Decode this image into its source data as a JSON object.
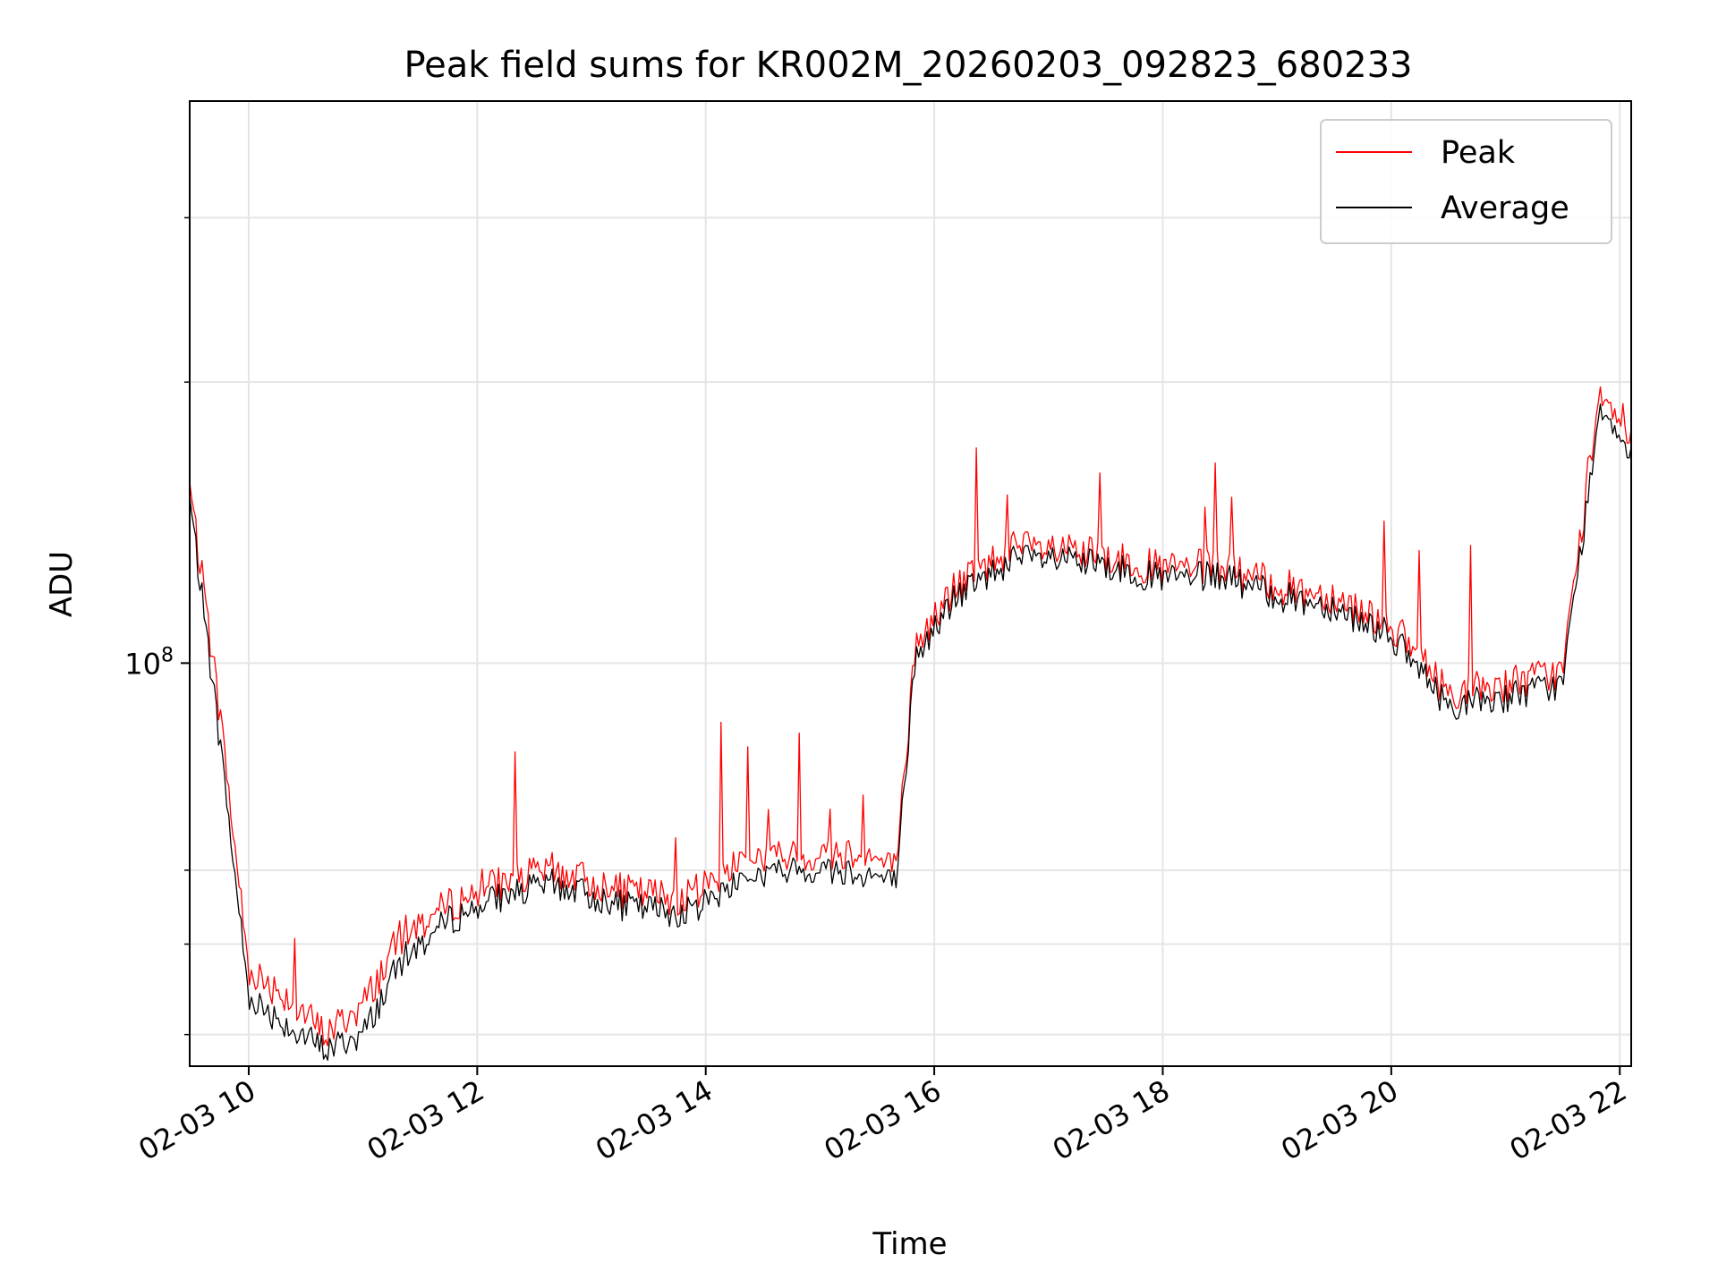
{
  "chart_data": {
    "type": "line",
    "title": "Peak field sums for KR002M_20260203_092823_680233",
    "xlabel": "Time",
    "ylabel": "ADU",
    "yscale": "log",
    "grid": true,
    "legend_position": "top-right",
    "xlim": [
      "2026-02-03 09:29",
      "2026-02-03 22:06"
    ],
    "ylim": [
      37000000,
      400000000
    ],
    "x_ticks": [
      "02-03 10",
      "02-03 12",
      "02-03 14",
      "02-03 16",
      "02-03 18",
      "02-03 20",
      "02-03 22"
    ],
    "y_tick_labels": [
      {
        "base": "10",
        "exponent": "8"
      }
    ],
    "x": [
      "2026-02-03 09:29",
      "2026-02-03 09:45",
      "2026-02-03 10:00",
      "2026-02-03 10:20",
      "2026-02-03 10:40",
      "2026-02-03 11:00",
      "2026-02-03 11:20",
      "2026-02-03 11:45",
      "2026-02-03 12:10",
      "2026-02-03 12:40",
      "2026-02-03 13:15",
      "2026-02-03 13:50",
      "2026-02-03 14:20",
      "2026-02-03 14:50",
      "2026-02-03 15:20",
      "2026-02-03 15:40",
      "2026-02-03 15:50",
      "2026-02-03 16:10",
      "2026-02-03 16:40",
      "2026-02-03 17:00",
      "2026-02-03 17:30",
      "2026-02-03 18:00",
      "2026-02-03 18:30",
      "2026-02-03 19:00",
      "2026-02-03 19:30",
      "2026-02-03 20:00",
      "2026-02-03 20:30",
      "2026-02-03 21:00",
      "2026-02-03 21:30",
      "2026-02-03 21:50",
      "2026-02-03 22:06"
    ],
    "series": [
      {
        "name": "Peak",
        "color": "#ff0000",
        "values": [
          155000000,
          88000000,
          47000000,
          44000000,
          40000000,
          43000000,
          51000000,
          55000000,
          58000000,
          60000000,
          57000000,
          56000000,
          62000000,
          62000000,
          63000000,
          60000000,
          104000000,
          120000000,
          133000000,
          132000000,
          130000000,
          126000000,
          127000000,
          121000000,
          118000000,
          110000000,
          93000000,
          95000000,
          98000000,
          198000000,
          175000000
        ]
      },
      {
        "name": "Average",
        "color": "#000000",
        "values": [
          150000000,
          82000000,
          44000000,
          41000000,
          38500000,
          40000000,
          48000000,
          53000000,
          56000000,
          58000000,
          55000000,
          54000000,
          59000000,
          60000000,
          60000000,
          58000000,
          101000000,
          117000000,
          129000000,
          129000000,
          127000000,
          123000000,
          124000000,
          118000000,
          115000000,
          107000000,
          90000000,
          92000000,
          95000000,
          190000000,
          168000000
        ]
      }
    ]
  }
}
